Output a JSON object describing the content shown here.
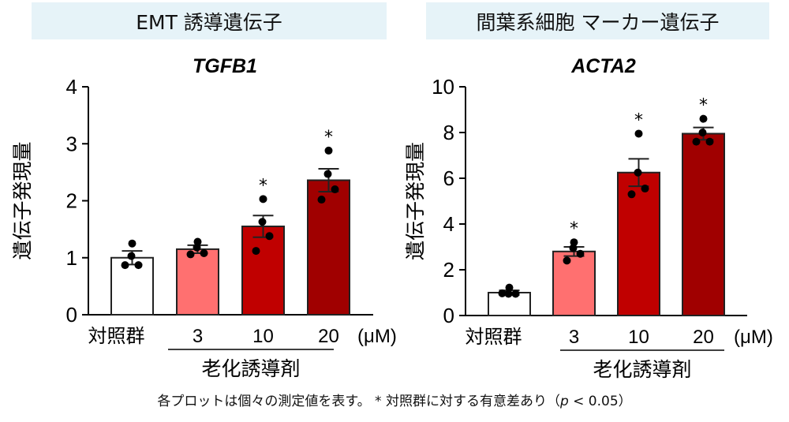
{
  "footnote": {
    "text_main": "各プロットは個々の測定値を表す。 * 対照群に対する有意差あり（",
    "p_symbol": "p",
    "text_tail": " < 0.05）"
  },
  "chart_data": [
    {
      "type": "bar",
      "header": "EMT 誘導遺伝子",
      "title": "TGFB1",
      "ylabel": "遺伝子発現量",
      "xlabel": "老化誘導剤",
      "unit_label": "(μM)",
      "categories": [
        "対照群",
        "3",
        "10",
        "20"
      ],
      "values": [
        1.0,
        1.15,
        1.55,
        2.36
      ],
      "sem": [
        0.12,
        0.07,
        0.19,
        0.2
      ],
      "points": [
        [
          1.25,
          1.03,
          0.87,
          0.87
        ],
        [
          1.28,
          1.18,
          1.08,
          1.06
        ],
        [
          2.03,
          1.63,
          1.38,
          1.12
        ],
        [
          2.88,
          2.47,
          2.2,
          2.02
        ]
      ],
      "significant": [
        false,
        false,
        true,
        true
      ],
      "sig_marker": "*",
      "colors": [
        "#ffffff",
        "#ff7070",
        "#c00000",
        "#a00000"
      ],
      "ylim": [
        0,
        4
      ],
      "yticks": [
        "0",
        "1",
        "2",
        "3",
        "4"
      ]
    },
    {
      "type": "bar",
      "header": "間葉系細胞 マーカー遺伝子",
      "title": "ACTA2",
      "ylabel": "遺伝子発現量",
      "xlabel": "老化誘導剤",
      "unit_label": "(μM)",
      "categories": [
        "対照群",
        "3",
        "10",
        "20"
      ],
      "values": [
        1.0,
        2.8,
        6.25,
        7.95
      ],
      "sem": [
        0.1,
        0.2,
        0.6,
        0.27
      ],
      "points": [
        [
          1.22,
          0.95,
          0.95,
          0.97
        ],
        [
          3.2,
          2.95,
          2.7,
          2.4
        ],
        [
          7.95,
          6.25,
          5.55,
          5.3
        ],
        [
          8.6,
          8.0,
          7.6,
          7.6
        ]
      ],
      "significant": [
        false,
        true,
        true,
        true
      ],
      "sig_marker": "*",
      "colors": [
        "#ffffff",
        "#ff7070",
        "#c00000",
        "#a00000"
      ],
      "ylim": [
        0,
        10
      ],
      "yticks": [
        "0",
        "2",
        "4",
        "6",
        "8",
        "10"
      ]
    }
  ]
}
